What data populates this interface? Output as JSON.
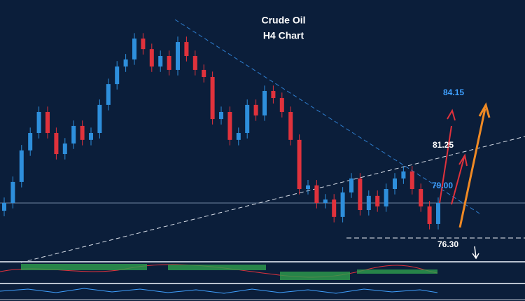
{
  "chart_data": {
    "type": "candlestick",
    "title": "Crude Oil",
    "subtitle": "H4 Chart",
    "ylim": [
      75.06,
      89.43
    ],
    "up_color": "#2e8fdc",
    "down_color": "#e0323c",
    "open": [
      77.8,
      78.23,
      79.39,
      81.13,
      82.09,
      83.25,
      82.09,
      80.93,
      81.51,
      82.48,
      81.71,
      82.09,
      83.64,
      84.79,
      85.76,
      86.15,
      87.3,
      86.72,
      85.76,
      86.34,
      85.57,
      87.11,
      86.34,
      85.57,
      85.18,
      82.86,
      83.25,
      81.71,
      82.09,
      83.64,
      83.06,
      84.41,
      84.02,
      83.25,
      81.71,
      79.0,
      79.2,
      78.23,
      78.42,
      77.46,
      78.81,
      79.58,
      77.84,
      78.62,
      78.04,
      79.0,
      79.58,
      79.97,
      79.0,
      78.04,
      77.07
    ],
    "high": [
      78.53,
      79.69,
      81.43,
      82.39,
      83.55,
      83.55,
      82.39,
      81.81,
      82.78,
      82.78,
      82.39,
      83.94,
      85.09,
      86.06,
      86.45,
      87.6,
      87.6,
      87.02,
      86.64,
      86.64,
      87.41,
      87.41,
      86.64,
      85.87,
      85.48,
      83.55,
      83.55,
      82.39,
      83.94,
      83.94,
      84.71,
      84.71,
      84.32,
      83.55,
      82.01,
      79.5,
      79.5,
      78.72,
      78.72,
      79.11,
      79.88,
      79.88,
      78.92,
      78.92,
      79.3,
      79.88,
      80.27,
      80.27,
      79.3,
      78.34,
      78.53
    ],
    "low": [
      77.5,
      77.93,
      79.09,
      80.83,
      81.79,
      81.79,
      80.63,
      80.63,
      81.21,
      81.41,
      81.41,
      81.79,
      83.34,
      84.49,
      85.46,
      85.85,
      86.42,
      85.46,
      85.46,
      85.27,
      85.27,
      86.04,
      85.27,
      84.88,
      82.56,
      82.56,
      81.41,
      81.41,
      81.79,
      82.76,
      82.76,
      83.72,
      82.95,
      81.41,
      78.7,
      78.7,
      77.93,
      77.93,
      77.16,
      77.16,
      78.51,
      77.54,
      77.54,
      77.74,
      77.74,
      78.7,
      79.28,
      78.7,
      77.74,
      76.77,
      76.77
    ],
    "close": [
      78.23,
      79.39,
      81.13,
      82.09,
      83.25,
      82.09,
      80.93,
      81.51,
      82.48,
      81.71,
      82.09,
      83.64,
      84.79,
      85.76,
      86.15,
      87.3,
      86.72,
      85.76,
      86.34,
      85.57,
      87.11,
      86.34,
      85.57,
      85.18,
      82.86,
      83.25,
      81.71,
      82.09,
      83.64,
      83.06,
      84.41,
      84.02,
      83.25,
      81.71,
      79.0,
      79.2,
      78.23,
      78.42,
      77.46,
      78.81,
      79.58,
      77.84,
      78.62,
      78.04,
      79.0,
      79.58,
      79.97,
      79.0,
      78.04,
      77.07,
      78.23
    ],
    "levels": [
      {
        "value": 84.15,
        "label": "84.15",
        "color": "#3fa0ff"
      },
      {
        "value": 81.25,
        "label": "81.25",
        "color": "#ffffff"
      },
      {
        "value": 79.0,
        "label": "79.00",
        "color": "#3fa0ff"
      },
      {
        "value": 76.3,
        "label": "76.30",
        "color": "#ffffff"
      }
    ]
  }
}
